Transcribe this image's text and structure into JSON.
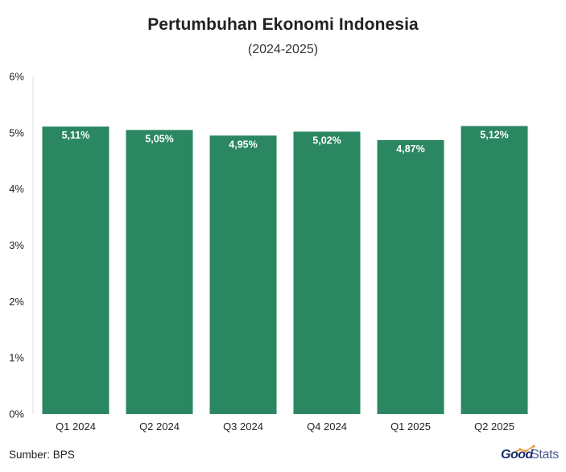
{
  "header": {
    "title": "Pertumbuhan Ekonomi Indonesia",
    "subtitle": "(2024-2025)"
  },
  "footer": {
    "source": "Sumber: BPS",
    "logo_text_bold": "Good",
    "logo_text_light": "Stats"
  },
  "colors": {
    "bar": "#2a8762",
    "bar_label": "#ffffff",
    "axis_text": "#222222",
    "axis_line": "#dddddd"
  },
  "chart_data": {
    "type": "bar",
    "title": "Pertumbuhan Ekonomi Indonesia",
    "subtitle": "(2024-2025)",
    "categories": [
      "Q1 2024",
      "Q2 2024",
      "Q3 2024",
      "Q4 2024",
      "Q1 2025",
      "Q2 2025"
    ],
    "values": [
      5.11,
      5.05,
      4.95,
      5.02,
      4.87,
      5.12
    ],
    "data_labels": [
      "5,11%",
      "5,05%",
      "4,95%",
      "5,02%",
      "4,87%",
      "5,12%"
    ],
    "yticks": [
      "0%",
      "1%",
      "2%",
      "3%",
      "4%",
      "5%",
      "6%"
    ],
    "ylim": [
      0,
      6
    ],
    "grid": false,
    "legend": "none",
    "xlabel": "",
    "ylabel": ""
  }
}
